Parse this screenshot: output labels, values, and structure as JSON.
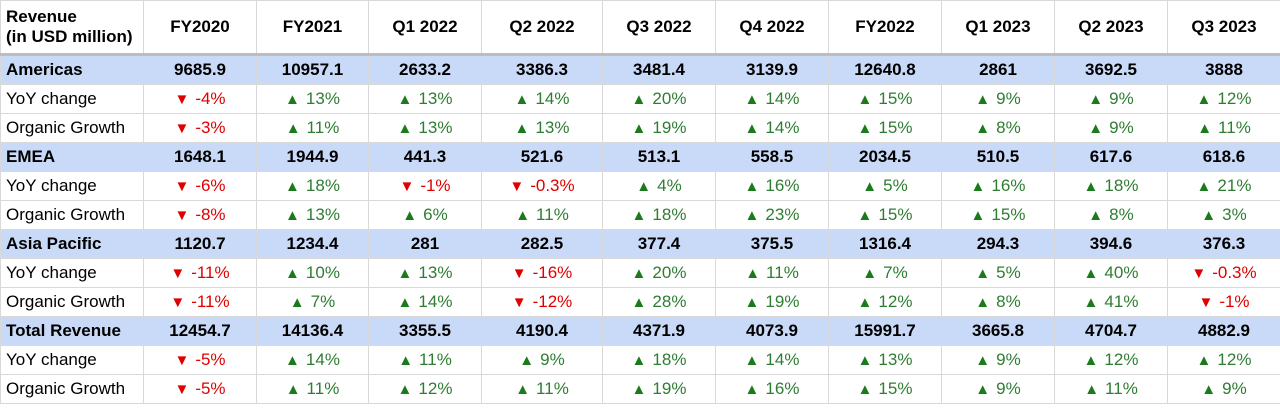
{
  "header": {
    "corner_line1": "Revenue",
    "corner_line2": "(in USD million)",
    "columns": [
      "FY2020",
      "FY2021",
      "Q1 2022",
      "Q2 2022",
      "Q3 2022",
      "Q4 2022",
      "FY2022",
      "Q1 2023",
      "Q2 2023",
      "Q3 2023"
    ]
  },
  "rows": [
    {
      "type": "section",
      "label": "Americas",
      "cells": [
        "9685.9",
        "10957.1",
        "2633.2",
        "3386.3",
        "3481.4",
        "3139.9",
        "12640.8",
        "2861",
        "3692.5",
        "3888"
      ]
    },
    {
      "type": "metric",
      "label": "YoY change",
      "cells": [
        {
          "dir": "down",
          "text": "-4%"
        },
        {
          "dir": "up",
          "text": "13%"
        },
        {
          "dir": "up",
          "text": "13%"
        },
        {
          "dir": "up",
          "text": "14%"
        },
        {
          "dir": "up",
          "text": "20%"
        },
        {
          "dir": "up",
          "text": "14%"
        },
        {
          "dir": "up",
          "text": "15%"
        },
        {
          "dir": "up",
          "text": "9%"
        },
        {
          "dir": "up",
          "text": "9%"
        },
        {
          "dir": "up",
          "text": "12%"
        }
      ]
    },
    {
      "type": "metric",
      "label": "Organic Growth",
      "cells": [
        {
          "dir": "down",
          "text": "-3%"
        },
        {
          "dir": "up",
          "text": "11%"
        },
        {
          "dir": "up",
          "text": "13%"
        },
        {
          "dir": "up",
          "text": "13%"
        },
        {
          "dir": "up",
          "text": "19%"
        },
        {
          "dir": "up",
          "text": "14%"
        },
        {
          "dir": "up",
          "text": "15%"
        },
        {
          "dir": "up",
          "text": "8%"
        },
        {
          "dir": "up",
          "text": "9%"
        },
        {
          "dir": "up",
          "text": "11%"
        }
      ]
    },
    {
      "type": "section",
      "label": "EMEA",
      "cells": [
        "1648.1",
        "1944.9",
        "441.3",
        "521.6",
        "513.1",
        "558.5",
        "2034.5",
        "510.5",
        "617.6",
        "618.6"
      ]
    },
    {
      "type": "metric",
      "label": "YoY change",
      "cells": [
        {
          "dir": "down",
          "text": "-6%"
        },
        {
          "dir": "up",
          "text": "18%"
        },
        {
          "dir": "down",
          "text": "-1%"
        },
        {
          "dir": "down",
          "text": "-0.3%"
        },
        {
          "dir": "up",
          "text": "4%"
        },
        {
          "dir": "up",
          "text": "16%"
        },
        {
          "dir": "up",
          "text": "5%"
        },
        {
          "dir": "up",
          "text": "16%"
        },
        {
          "dir": "up",
          "text": "18%"
        },
        {
          "dir": "up",
          "text": "21%"
        }
      ]
    },
    {
      "type": "metric",
      "label": "Organic Growth",
      "cells": [
        {
          "dir": "down",
          "text": "-8%"
        },
        {
          "dir": "up",
          "text": "13%"
        },
        {
          "dir": "up",
          "text": "6%"
        },
        {
          "dir": "up",
          "text": "11%"
        },
        {
          "dir": "up",
          "text": "18%"
        },
        {
          "dir": "up",
          "text": "23%"
        },
        {
          "dir": "up",
          "text": "15%"
        },
        {
          "dir": "up",
          "text": "15%"
        },
        {
          "dir": "up",
          "text": "8%"
        },
        {
          "dir": "up",
          "text": "3%"
        }
      ]
    },
    {
      "type": "section",
      "label": "Asia Pacific",
      "cells": [
        "1120.7",
        "1234.4",
        "281",
        "282.5",
        "377.4",
        "375.5",
        "1316.4",
        "294.3",
        "394.6",
        "376.3"
      ]
    },
    {
      "type": "metric",
      "label": "YoY change",
      "cells": [
        {
          "dir": "down",
          "text": "-11%"
        },
        {
          "dir": "up",
          "text": "10%"
        },
        {
          "dir": "up",
          "text": "13%"
        },
        {
          "dir": "down",
          "text": "-16%"
        },
        {
          "dir": "up",
          "text": "20%"
        },
        {
          "dir": "up",
          "text": "11%"
        },
        {
          "dir": "up",
          "text": "7%"
        },
        {
          "dir": "up",
          "text": "5%"
        },
        {
          "dir": "up",
          "text": "40%"
        },
        {
          "dir": "down",
          "text": "-0.3%"
        }
      ]
    },
    {
      "type": "metric",
      "label": "Organic Growth",
      "cells": [
        {
          "dir": "down",
          "text": "-11%"
        },
        {
          "dir": "up",
          "text": "7%"
        },
        {
          "dir": "up",
          "text": "14%"
        },
        {
          "dir": "down",
          "text": "-12%"
        },
        {
          "dir": "up",
          "text": "28%"
        },
        {
          "dir": "up",
          "text": "19%"
        },
        {
          "dir": "up",
          "text": "12%"
        },
        {
          "dir": "up",
          "text": "8%"
        },
        {
          "dir": "up",
          "text": "41%"
        },
        {
          "dir": "down",
          "text": "-1%"
        }
      ]
    },
    {
      "type": "section",
      "label": "Total Revenue",
      "cells": [
        "12454.7",
        "14136.4",
        "3355.5",
        "4190.4",
        "4371.9",
        "4073.9",
        "15991.7",
        "3665.8",
        "4704.7",
        "4882.9"
      ]
    },
    {
      "type": "metric",
      "label": "YoY change",
      "cells": [
        {
          "dir": "down",
          "text": "-5%"
        },
        {
          "dir": "up",
          "text": "14%"
        },
        {
          "dir": "up",
          "text": "11%"
        },
        {
          "dir": "up",
          "text": "9%"
        },
        {
          "dir": "up",
          "text": "18%"
        },
        {
          "dir": "up",
          "text": "14%"
        },
        {
          "dir": "up",
          "text": "13%"
        },
        {
          "dir": "up",
          "text": "9%"
        },
        {
          "dir": "up",
          "text": "12%"
        },
        {
          "dir": "up",
          "text": "12%"
        }
      ]
    },
    {
      "type": "metric",
      "label": "Organic Growth",
      "cells": [
        {
          "dir": "down",
          "text": "-5%"
        },
        {
          "dir": "up",
          "text": "11%"
        },
        {
          "dir": "up",
          "text": "12%"
        },
        {
          "dir": "up",
          "text": "11%"
        },
        {
          "dir": "up",
          "text": "19%"
        },
        {
          "dir": "up",
          "text": "16%"
        },
        {
          "dir": "up",
          "text": "15%"
        },
        {
          "dir": "up",
          "text": "9%"
        },
        {
          "dir": "up",
          "text": "11%"
        },
        {
          "dir": "up",
          "text": "9%"
        }
      ]
    }
  ],
  "colors": {
    "section_bg": "#c9daf8",
    "up": "#2e7d32",
    "down": "#e00000",
    "grid": "#d9d9d9"
  },
  "icons": {
    "up": "triangle-up-icon",
    "down": "triangle-down-icon"
  }
}
